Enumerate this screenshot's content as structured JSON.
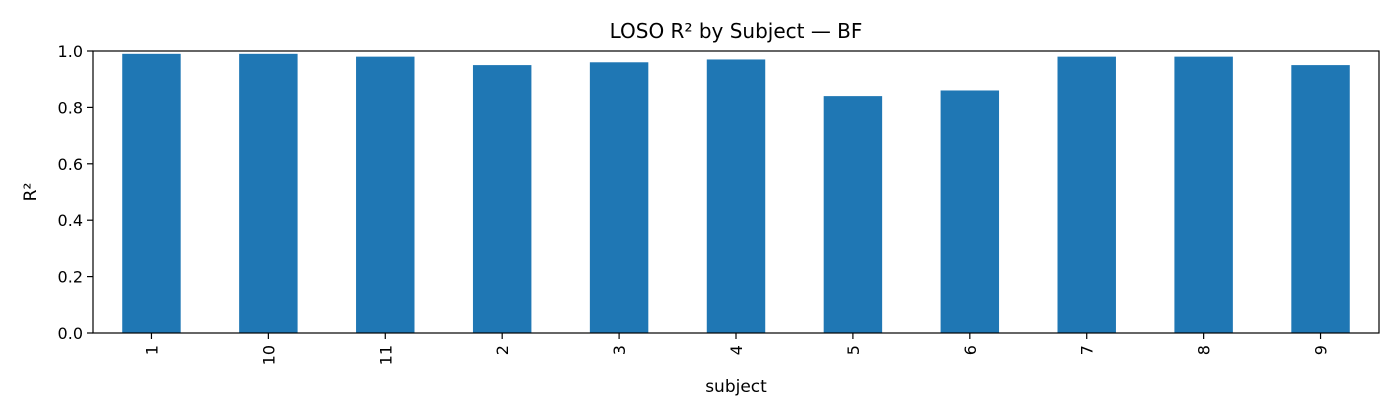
{
  "chart_data": {
    "type": "bar",
    "title": "LOSO R² by Subject — BF",
    "xlabel": "subject",
    "ylabel": "R²",
    "categories": [
      "1",
      "10",
      "11",
      "2",
      "3",
      "4",
      "5",
      "6",
      "7",
      "8",
      "9"
    ],
    "values": [
      0.99,
      0.99,
      0.98,
      0.95,
      0.96,
      0.97,
      0.84,
      0.86,
      0.98,
      0.98,
      0.95
    ],
    "ylim": [
      0,
      1.0
    ],
    "yticks": [
      "0.0",
      "0.2",
      "0.4",
      "0.6",
      "0.8",
      "1.0"
    ],
    "grid": false,
    "bar_color": "#1f77b4"
  }
}
